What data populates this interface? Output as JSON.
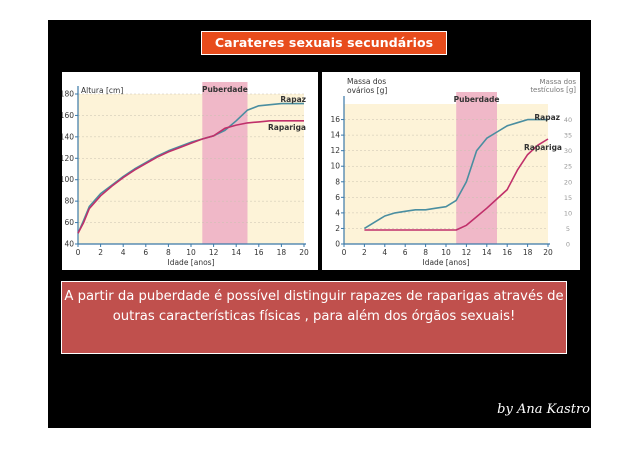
{
  "slide": {
    "title": "Carateres sexuais secundários",
    "text": "A partir da puberdade é possível distinguir rapazes de raparigas através de outras características físicas , para além dos órgãos sexuais!",
    "signature": "by Ana Kastro"
  },
  "colors": {
    "title_bg": "#e84c1c",
    "text_bg": "#c0504d",
    "puberty_band": "#f0b8c8",
    "boy_line": "#4a8ea0",
    "girl_line": "#c0306a",
    "axis": "#3a78a8",
    "plot_bg": "#fdf3d8"
  },
  "chart_data": [
    {
      "type": "line",
      "y_axis_title": "Altura [cm]",
      "xlabel": "Idade [anos]",
      "band_label": "Puberdade",
      "band_range": [
        11,
        15
      ],
      "xlim": [
        0,
        20
      ],
      "ylim": [
        40,
        180
      ],
      "x_ticks": [
        "0",
        "2",
        "4",
        "6",
        "8",
        "10",
        "12",
        "14",
        "16",
        "18",
        "20"
      ],
      "y_ticks": [
        "40",
        "60",
        "80",
        "100",
        "120",
        "140",
        "160",
        "180"
      ],
      "series": [
        {
          "name": "Rapaz",
          "x": [
            0,
            0.5,
            1,
            2,
            3,
            4,
            5,
            6,
            7,
            8,
            9,
            10,
            11,
            12,
            13,
            14,
            15,
            16,
            17,
            18,
            19,
            20
          ],
          "y": [
            50,
            62,
            75,
            87,
            95,
            103,
            110,
            116,
            122,
            127,
            131,
            135,
            138,
            141,
            146,
            155,
            165,
            169,
            170,
            171,
            171,
            171
          ]
        },
        {
          "name": "Rapariga",
          "x": [
            0,
            0.5,
            1,
            2,
            3,
            4,
            5,
            6,
            7,
            8,
            9,
            10,
            11,
            12,
            13,
            14,
            15,
            16,
            17,
            18,
            19,
            20
          ],
          "y": [
            50,
            60,
            73,
            85,
            94,
            102,
            109,
            115,
            121,
            126,
            130,
            134,
            138,
            141,
            148,
            151,
            153,
            154,
            155,
            155,
            155,
            155
          ]
        }
      ]
    },
    {
      "type": "line",
      "y_axis_title": "Massa dos ovários [g]",
      "y2_axis_title": "Massa dos testículos [g]",
      "xlabel": "Idade [anos]",
      "band_label": "Puberdade",
      "band_range": [
        11,
        15
      ],
      "xlim": [
        0,
        20
      ],
      "ylim": [
        0,
        18
      ],
      "y2lim": [
        0,
        45
      ],
      "x_ticks": [
        "0",
        "2",
        "4",
        "6",
        "8",
        "10",
        "12",
        "14",
        "16",
        "18",
        "20"
      ],
      "y_ticks": [
        "0",
        "2",
        "4",
        "6",
        "8",
        "10",
        "12",
        "14",
        "16"
      ],
      "y2_ticks": [
        "0",
        "5",
        "10",
        "15",
        "20",
        "25",
        "30",
        "35",
        "40"
      ],
      "series": [
        {
          "name": "Rapaz",
          "axis": "right",
          "x": [
            2,
            3,
            4,
            5,
            6,
            7,
            8,
            9,
            10,
            11,
            12,
            13,
            14,
            15,
            16,
            17,
            18,
            19,
            20
          ],
          "y": [
            5,
            7,
            9,
            10,
            10.5,
            11,
            11,
            11.5,
            12,
            14,
            20,
            30,
            34,
            36,
            38,
            39,
            40,
            40,
            40
          ]
        },
        {
          "name": "Rapariga",
          "axis": "left",
          "x": [
            2,
            4,
            6,
            8,
            10,
            11,
            12,
            13,
            14,
            15,
            16,
            17,
            18,
            19,
            20
          ],
          "y": [
            1.8,
            1.8,
            1.8,
            1.8,
            1.8,
            1.8,
            2.4,
            3.5,
            4.6,
            5.8,
            7,
            9.5,
            11.5,
            12.7,
            13.5
          ]
        }
      ]
    }
  ]
}
